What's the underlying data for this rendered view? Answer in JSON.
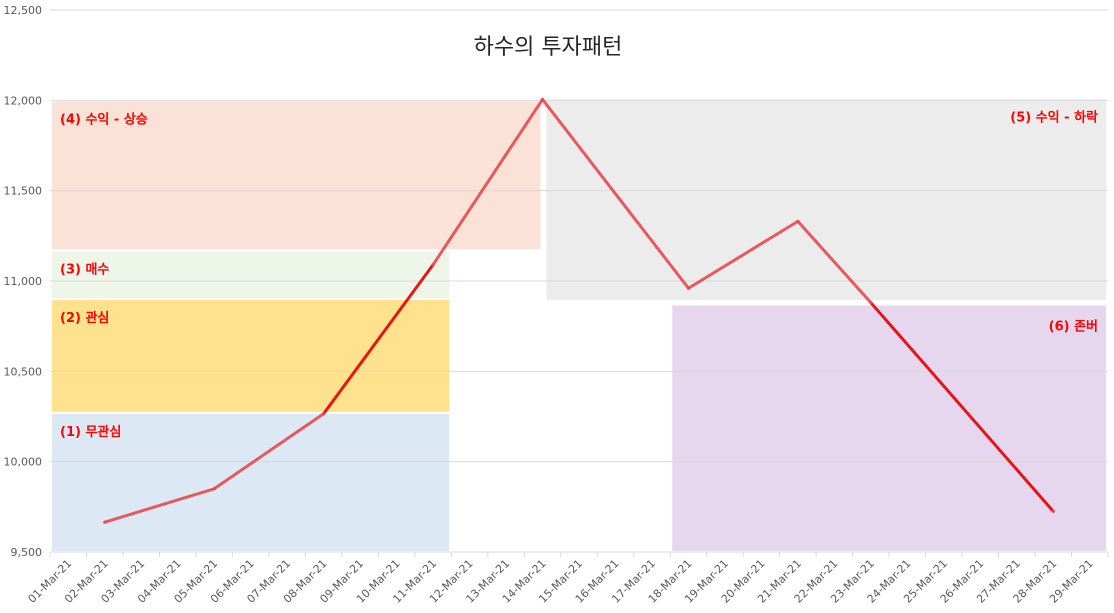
{
  "chart_data": {
    "type": "line",
    "title": "하수의 투자패턴",
    "xlabel": "",
    "ylabel": "",
    "ylim": [
      9500,
      12500
    ],
    "yticks": [
      9500,
      10000,
      10500,
      11000,
      11500,
      12000,
      12500
    ],
    "ytick_labels": [
      "9,500",
      "10,000",
      "10,500",
      "11,000",
      "11,500",
      "12,000",
      "12,500"
    ],
    "categories": [
      "01-Mar-21",
      "02-Mar-21",
      "03-Mar-21",
      "04-Mar-21",
      "05-Mar-21",
      "06-Mar-21",
      "07-Mar-21",
      "08-Mar-21",
      "09-Mar-21",
      "10-Mar-21",
      "11-Mar-21",
      "12-Mar-21",
      "13-Mar-21",
      "14-Mar-21",
      "15-Mar-21",
      "16-Mar-21",
      "17-Mar-21",
      "18-Mar-21",
      "19-Mar-21",
      "20-Mar-21",
      "21-Mar-21",
      "22-Mar-21",
      "23-Mar-21",
      "24-Mar-21",
      "25-Mar-21",
      "26-Mar-21",
      "27-Mar-21",
      "28-Mar-21",
      "29-Mar-21"
    ],
    "points": [
      {
        "x": "02-Mar-21",
        "y": 9665
      },
      {
        "x": "05-Mar-21",
        "y": 9850
      },
      {
        "x": "08-Mar-21",
        "y": 10265
      },
      {
        "x": "11-Mar-21",
        "y": 11090
      },
      {
        "x": "14-Mar-21",
        "y": 12005
      },
      {
        "x": "18-Mar-21",
        "y": 10960
      },
      {
        "x": "21-Mar-21",
        "y": 11330
      },
      {
        "x": "23-Mar-21",
        "y": 10880
      },
      {
        "x": "28-Mar-21",
        "y": 9725
      }
    ],
    "line_color": "#e8494f",
    "highlight_color": "#e60000",
    "grid": true,
    "regions": [
      {
        "label": "(1) 무관심",
        "color": "#dde8f5",
        "x_from": "01-Mar-21",
        "x_to": "11-Mar-21",
        "y_from": 9500,
        "y_to": 10270
      },
      {
        "label": "(2) 관심",
        "color": "#ffe28e",
        "x_from": "01-Mar-21",
        "x_to": "11-Mar-21",
        "y_from": 10270,
        "y_to": 10900
      },
      {
        "label": "(3) 매수",
        "color": "#eef6ea",
        "x_from": "01-Mar-21",
        "x_to": "11-Mar-21",
        "y_from": 10900,
        "y_to": 11170
      },
      {
        "label": "(4) 수익 - 상승",
        "color": "#fbe2d6",
        "x_from": "01-Mar-21",
        "x_to": "14-Mar-21",
        "y_from": 11170,
        "y_to": 12000
      },
      {
        "label": "(5) 수익 - 하락",
        "color": "#ececec",
        "x_from": "14-Mar-21",
        "x_to": "29-Mar-21",
        "y_from": 10890,
        "y_to": 12010
      },
      {
        "label": "(6) 존버",
        "color": "#e6d7ee",
        "x_from": "18-Mar-21",
        "x_to": "29-Mar-21",
        "y_from": 9500,
        "y_to": 10870
      }
    ]
  }
}
